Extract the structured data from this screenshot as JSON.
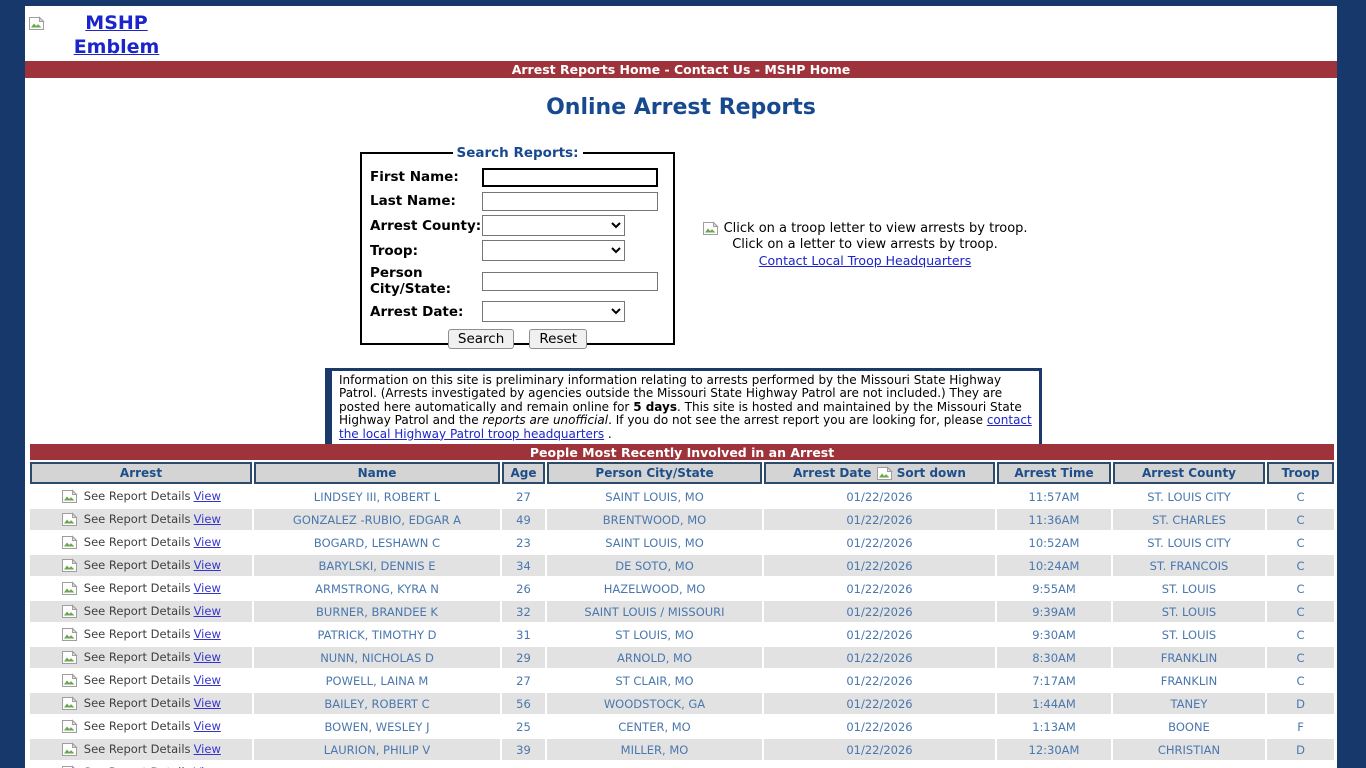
{
  "colors": {
    "page_background": "#17386b",
    "accent_red": "#9e333c",
    "title_navy": "#17498f",
    "link_blue": "#1c24cc",
    "table_text_blue": "#4a77ad",
    "row_alt_gray": "#e2e2e2",
    "header_cell_gray": "#d4d4d4"
  },
  "header": {
    "emblem_alt": "MSHP Emblem"
  },
  "nav": {
    "items": [
      "Arrest Reports Home",
      "Contact Us",
      "MSHP Home"
    ],
    "separator": " - "
  },
  "main": {
    "title": "Online Arrest Reports"
  },
  "search": {
    "legend": "Search Reports:",
    "fields": [
      {
        "label": "First Name:",
        "type": "text",
        "value": ""
      },
      {
        "label": "Last Name:",
        "type": "text",
        "value": ""
      },
      {
        "label": "Arrest County:",
        "type": "select",
        "value": ""
      },
      {
        "label": "Troop:",
        "type": "select",
        "value": ""
      },
      {
        "label": "Person City/State:",
        "type": "text",
        "value": ""
      },
      {
        "label": "Arrest Date:",
        "type": "select",
        "value": ""
      }
    ],
    "buttons": {
      "search": "Search",
      "reset": "Reset"
    }
  },
  "troop_panel": {
    "image_alt": "Click on a troop letter to view arrests by troop.",
    "caption": "Click on a letter to view arrests by troop.",
    "link": "Contact Local Troop Headquarters"
  },
  "notice": {
    "parts": [
      {
        "text": "Information on this site is preliminary information relating to arrests performed by the Missouri State Highway Patrol. (Arrests investigated by agencies outside the Missouri State Highway Patrol are not included.) They are posted here automatically and remain online for "
      },
      {
        "text": "5 days",
        "style": "bold"
      },
      {
        "text": ". This site is hosted and maintained by the Missouri State Highway Patrol and the "
      },
      {
        "text": "reports are unofficial",
        "style": "italic"
      },
      {
        "text": ". If you do not see the arrest report you are looking for, please "
      },
      {
        "text": "contact the local Highway Patrol troop headquarters",
        "style": "link"
      },
      {
        "text": " ."
      }
    ]
  },
  "table": {
    "banner": "People Most Recently Involved in an Arrest",
    "columns": [
      "Arrest",
      "Name",
      "Age",
      "Person City/State",
      "Arrest Date",
      "Arrest Time",
      "Arrest County",
      "Troop"
    ],
    "sort_label": "Sort down",
    "report_details_alt": "See Report Details",
    "view_label": "View",
    "rows": [
      {
        "name": "LINDSEY III, ROBERT L",
        "age": "27",
        "city": "SAINT LOUIS, MO",
        "date": "01/22/2026",
        "time": "11:57AM",
        "county": "ST. LOUIS CITY",
        "troop": "C"
      },
      {
        "name": "GONZALEZ -RUBIO, EDGAR A",
        "age": "49",
        "city": "BRENTWOOD, MO",
        "date": "01/22/2026",
        "time": "11:36AM",
        "county": "ST. CHARLES",
        "troop": "C"
      },
      {
        "name": "BOGARD, LESHAWN C",
        "age": "23",
        "city": "SAINT LOUIS, MO",
        "date": "01/22/2026",
        "time": "10:52AM",
        "county": "ST. LOUIS CITY",
        "troop": "C"
      },
      {
        "name": "BARYLSKI, DENNIS E",
        "age": "34",
        "city": "DE SOTO, MO",
        "date": "01/22/2026",
        "time": "10:24AM",
        "county": "ST. FRANCOIS",
        "troop": "C"
      },
      {
        "name": "ARMSTRONG, KYRA N",
        "age": "26",
        "city": "HAZELWOOD, MO",
        "date": "01/22/2026",
        "time": "9:55AM",
        "county": "ST. LOUIS",
        "troop": "C"
      },
      {
        "name": "BURNER, BRANDEE K",
        "age": "32",
        "city": "SAINT LOUIS / MISSOURI",
        "date": "01/22/2026",
        "time": "9:39AM",
        "county": "ST. LOUIS",
        "troop": "C"
      },
      {
        "name": "PATRICK, TIMOTHY D",
        "age": "31",
        "city": "ST LOUIS, MO",
        "date": "01/22/2026",
        "time": "9:30AM",
        "county": "ST. LOUIS",
        "troop": "C"
      },
      {
        "name": "NUNN, NICHOLAS D",
        "age": "29",
        "city": "ARNOLD, MO",
        "date": "01/22/2026",
        "time": "8:30AM",
        "county": "FRANKLIN",
        "troop": "C"
      },
      {
        "name": "POWELL, LAINA M",
        "age": "27",
        "city": "ST CLAIR, MO",
        "date": "01/22/2026",
        "time": "7:17AM",
        "county": "FRANKLIN",
        "troop": "C"
      },
      {
        "name": "BAILEY, ROBERT C",
        "age": "56",
        "city": "WOODSTOCK, GA",
        "date": "01/22/2026",
        "time": "1:44AM",
        "county": "TANEY",
        "troop": "D"
      },
      {
        "name": "BOWEN, WESLEY J",
        "age": "25",
        "city": "CENTER, MO",
        "date": "01/22/2026",
        "time": "1:13AM",
        "county": "BOONE",
        "troop": "F"
      },
      {
        "name": "LAURION, PHILIP V",
        "age": "39",
        "city": "MILLER, MO",
        "date": "01/22/2026",
        "time": "12:30AM",
        "county": "CHRISTIAN",
        "troop": "D"
      },
      {
        "name": "",
        "age": "",
        "city": "",
        "date": "",
        "time": "",
        "county": "",
        "troop": ""
      }
    ]
  }
}
